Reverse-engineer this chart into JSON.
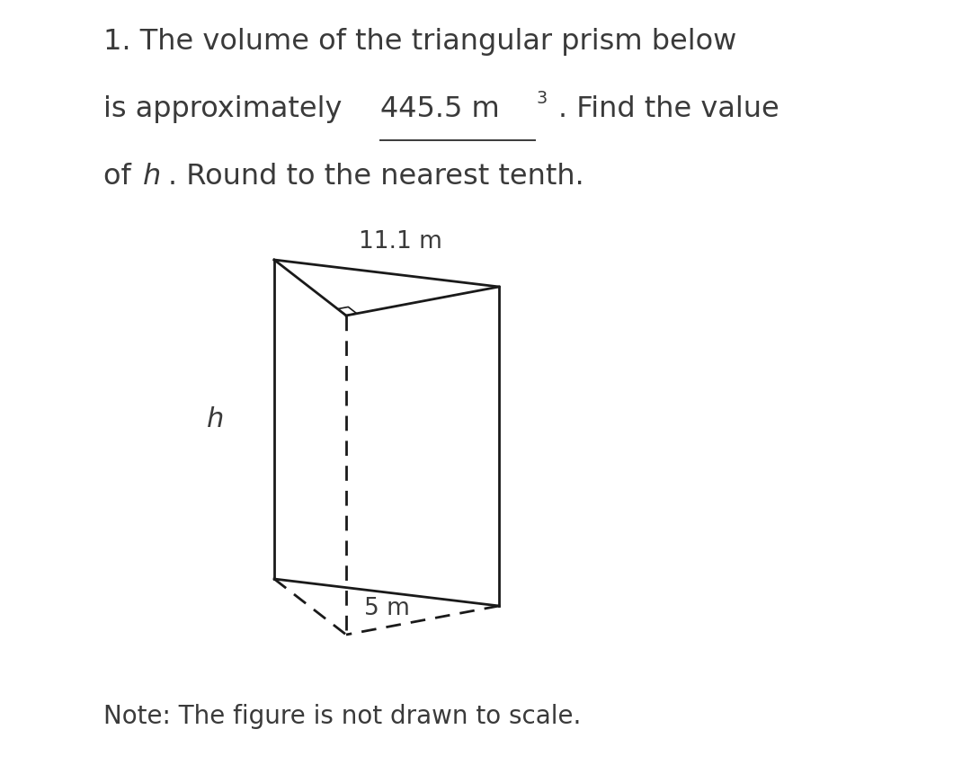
{
  "background_color": "#ffffff",
  "text_color": "#3a3a3a",
  "line_color": "#1a1a1a",
  "line_width": 2.0,
  "fig_width": 10.8,
  "fig_height": 8.61,
  "label_top": "11.1 m",
  "label_h": "h",
  "label_bottom": "5 m",
  "note": "Note: The figure is not drawn to scale.",
  "font_size_main": 23,
  "font_size_label": 19,
  "font_size_note": 20,
  "font_size_h": 22
}
